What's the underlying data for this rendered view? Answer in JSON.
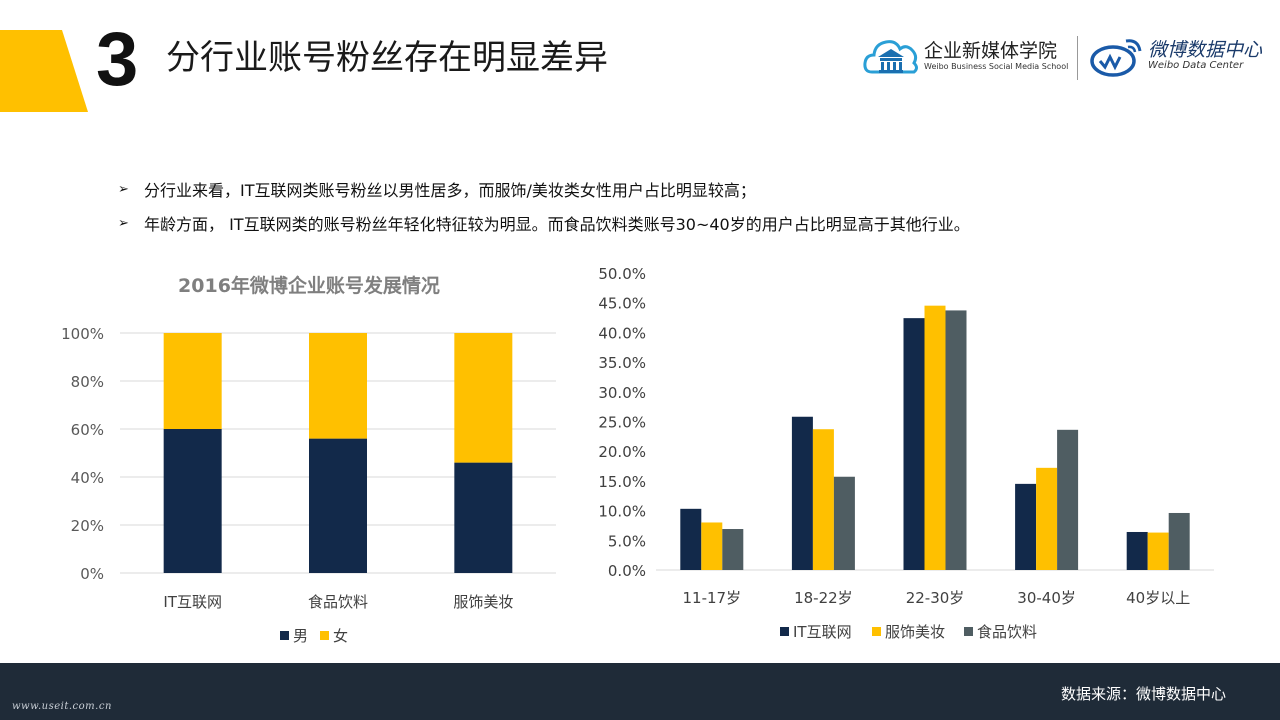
{
  "header": {
    "slide_number": "3",
    "title": "分行业账号粉丝存在明显差异",
    "accent_color": "#ffc000"
  },
  "logos": {
    "school": {
      "name": "企业新媒体学院",
      "subtitle": "Weibo Business Social Media School",
      "icon": "cloud-school-icon"
    },
    "weibo": {
      "name": "微博数据中心",
      "subtitle": "Weibo Data Center",
      "icon": "weibo-eye-icon"
    }
  },
  "bullets": [
    "分行业来看，IT互联网类账号粉丝以男性居多，而服饰/美妆类女性用户占比明显较高；",
    "年龄方面， IT互联网类的账号粉丝年轻化特征较为明显。而食品饮料类账号30~40岁的用户占比明显高于其他行业。"
  ],
  "bullet_marker": "➢",
  "footer": {
    "source": "数据来源：微博数据中心",
    "watermark": "www.useit.com.cn"
  },
  "chart_data": [
    {
      "type": "bar",
      "stacked": true,
      "title": "2016年微博企业账号发展情况",
      "categories": [
        "IT互联网",
        "食品饮料",
        "服饰美妆"
      ],
      "series": [
        {
          "name": "男",
          "values": [
            60,
            56,
            46
          ],
          "color": "#12294a"
        },
        {
          "name": "女",
          "values": [
            40,
            44,
            54
          ],
          "color": "#ffc000"
        }
      ],
      "ylim": [
        0,
        100
      ],
      "yticks": [
        0,
        20,
        40,
        60,
        80,
        100
      ],
      "ytick_labels": [
        "0%",
        "20%",
        "40%",
        "60%",
        "80%",
        "100%"
      ],
      "grid": true,
      "legend": "bottom"
    },
    {
      "type": "bar",
      "stacked": false,
      "title": "",
      "categories": [
        "11-17岁",
        "18-22岁",
        "22-30岁",
        "30-40岁",
        "40岁以上"
      ],
      "series": [
        {
          "name": "IT互联网",
          "values": [
            10.3,
            25.8,
            42.4,
            14.5,
            6.4
          ],
          "color": "#12294a"
        },
        {
          "name": "服饰美妆",
          "values": [
            8.0,
            23.7,
            44.5,
            17.2,
            6.3
          ],
          "color": "#ffc000"
        },
        {
          "name": "食品饮料",
          "values": [
            6.9,
            15.7,
            43.7,
            23.6,
            9.6
          ],
          "color": "#4f5d62"
        }
      ],
      "ylim": [
        0,
        50
      ],
      "yticks": [
        0,
        5,
        10,
        15,
        20,
        25,
        30,
        35,
        40,
        45,
        50
      ],
      "ytick_labels": [
        "0.0%",
        "5.0%",
        "10.0%",
        "15.0%",
        "20.0%",
        "25.0%",
        "30.0%",
        "35.0%",
        "40.0%",
        "45.0%",
        "50.0%"
      ],
      "grid": false,
      "legend": "bottom"
    }
  ]
}
